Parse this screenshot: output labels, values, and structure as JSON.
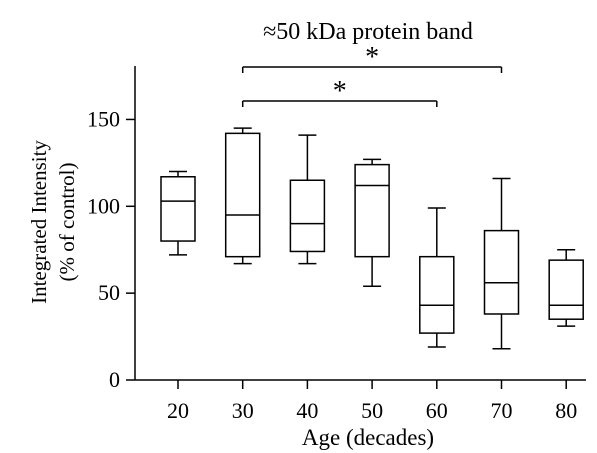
{
  "chart_data": {
    "type": "box",
    "title": "≈50 kDa protein band",
    "xlabel": "Age (decades)",
    "ylabel_line1": "Integrated Intensity",
    "ylabel_line2": "(% of control)",
    "ylim": [
      0,
      180
    ],
    "yticks": [
      0,
      50,
      100,
      150
    ],
    "ytick_labels": [
      "0",
      "50",
      "100",
      "150"
    ],
    "categories": [
      "20",
      "30",
      "40",
      "50",
      "60",
      "70",
      "80"
    ],
    "boxes": [
      {
        "category": "20",
        "min": 72,
        "q1": 80,
        "median": 103,
        "q3": 117,
        "max": 120
      },
      {
        "category": "30",
        "min": 67,
        "q1": 71,
        "median": 95,
        "q3": 142,
        "max": 145
      },
      {
        "category": "40",
        "min": 67,
        "q1": 74,
        "median": 90,
        "q3": 115,
        "max": 141
      },
      {
        "category": "50",
        "min": 54,
        "q1": 71,
        "median": 112,
        "q3": 124,
        "max": 127
      },
      {
        "category": "60",
        "min": 19,
        "q1": 27,
        "median": 43,
        "q3": 71,
        "max": 99
      },
      {
        "category": "70",
        "min": 18,
        "q1": 38,
        "median": 56,
        "q3": 86,
        "max": 116
      },
      {
        "category": "80",
        "min": 31,
        "q1": 35,
        "median": 43,
        "q3": 69,
        "max": 75
      }
    ],
    "significance": [
      {
        "from": "30",
        "to": "70",
        "label": "*"
      },
      {
        "from": "30",
        "to": "60",
        "label": "*"
      }
    ]
  }
}
